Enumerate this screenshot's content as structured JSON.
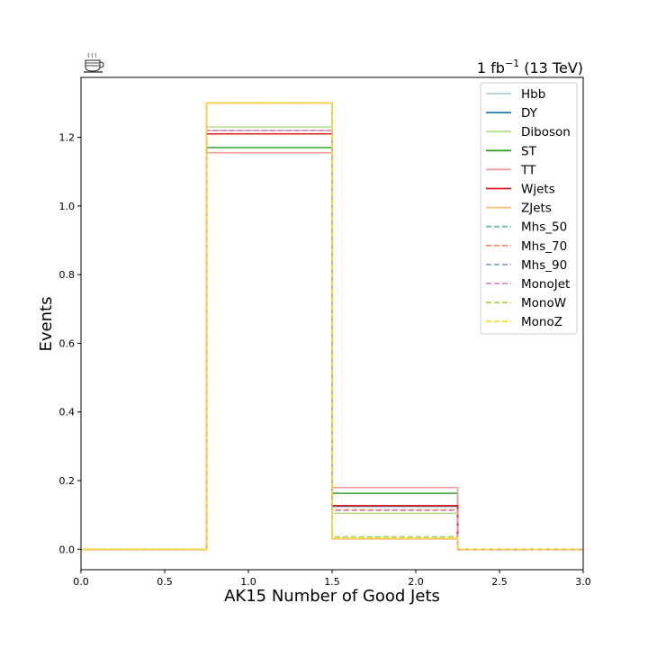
{
  "chart_data": {
    "type": "step-histogram",
    "title": "",
    "lumi_label": {
      "prefix": "1 fb",
      "exponent": "−1",
      "suffix": " (13 TeV)"
    },
    "corner_icon": "coffee-cup-icon",
    "xlabel": "AK15 Number of Good Jets",
    "ylabel": "Events",
    "xlim": [
      0.0,
      3.0
    ],
    "ylim": [
      -0.0595,
      1.3745
    ],
    "xticks": [
      0.0,
      0.5,
      1.0,
      1.5,
      2.0,
      2.5,
      3.0
    ],
    "xtick_labels": [
      "0.0",
      "0.5",
      "1.0",
      "1.5",
      "2.0",
      "2.5",
      "3.0"
    ],
    "yticks": [
      0.0,
      0.2,
      0.4,
      0.6,
      0.8,
      1.0,
      1.2
    ],
    "ytick_labels": [
      "0.0",
      "0.2",
      "0.4",
      "0.6",
      "0.8",
      "1.0",
      "1.2"
    ],
    "bin_edges": [
      0.0,
      0.75,
      1.5,
      2.25,
      3.0
    ],
    "legend_position": "top-right",
    "series": [
      {
        "name": "Hbb",
        "color": "#a6cee3",
        "dashed": false,
        "values": [
          0,
          1.22,
          0.105,
          0
        ]
      },
      {
        "name": "DY",
        "color": "#1f78b4",
        "dashed": false,
        "values": [
          0,
          1.21,
          0.125,
          0
        ]
      },
      {
        "name": "Diboson",
        "color": "#b2df8a",
        "dashed": false,
        "values": [
          0,
          1.23,
          0.105,
          0
        ]
      },
      {
        "name": "ST",
        "color": "#33a02c",
        "dashed": false,
        "values": [
          0,
          1.17,
          0.163,
          0
        ]
      },
      {
        "name": "TT",
        "color": "#fb9a99",
        "dashed": false,
        "values": [
          0,
          1.155,
          0.18,
          0
        ]
      },
      {
        "name": "Wjets",
        "color": "#e31a1c",
        "dashed": false,
        "values": [
          0,
          1.21,
          0.127,
          0
        ]
      },
      {
        "name": "ZJets",
        "color": "#fdbf6f",
        "dashed": false,
        "values": [
          0,
          1.3,
          0.03,
          0
        ]
      },
      {
        "name": "Mhs_50",
        "color": "#66c2a5",
        "dashed": true,
        "values": [
          0,
          1.3,
          0.036,
          0
        ]
      },
      {
        "name": "Mhs_70",
        "color": "#fc8d62",
        "dashed": true,
        "values": [
          0,
          1.22,
          0.115,
          0
        ]
      },
      {
        "name": "Mhs_90",
        "color": "#8da0cb",
        "dashed": true,
        "values": [
          0,
          1.3,
          0.033,
          0
        ]
      },
      {
        "name": "MonoJet",
        "color": "#e78ac3",
        "dashed": true,
        "values": [
          0,
          1.22,
          0.113,
          0
        ]
      },
      {
        "name": "MonoW",
        "color": "#a6d854",
        "dashed": true,
        "values": [
          0,
          1.3,
          0.035,
          0
        ]
      },
      {
        "name": "MonoZ",
        "color": "#ffd92f",
        "dashed": true,
        "values": [
          0,
          1.3,
          0.033,
          0
        ]
      }
    ]
  }
}
